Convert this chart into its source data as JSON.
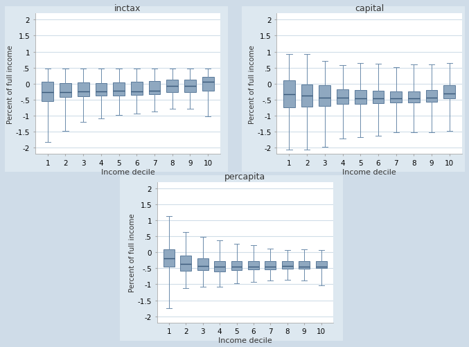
{
  "titles": [
    "inctax",
    "capital",
    "percapita"
  ],
  "xlabel": "Income decile",
  "ylabel": "Percent of full income",
  "ylim": [
    -2.2,
    2.2
  ],
  "yticks": [
    -2,
    -1.5,
    -1,
    -0.5,
    0,
    0.5,
    1,
    1.5,
    2
  ],
  "ytick_labels": [
    "-2",
    "-1.5",
    "-1",
    "-.5",
    "0",
    ".5",
    "1",
    "1.5",
    "2"
  ],
  "deciles": [
    1,
    2,
    3,
    4,
    5,
    6,
    7,
    8,
    9,
    10
  ],
  "box_facecolor": "#8fa8c0",
  "box_edgecolor": "#5a7a9a",
  "median_color": "#3a5a7a",
  "whisker_color": "#6a8aaa",
  "bg_color": "#cfdce8",
  "plot_bg": "#ffffff",
  "panel_bg": "#dde8f0",
  "grid_color": "#d0dde8",
  "inctax": {
    "q1": [
      -0.55,
      -0.42,
      -0.4,
      -0.38,
      -0.37,
      -0.35,
      -0.33,
      -0.27,
      -0.26,
      -0.22
    ],
    "median": [
      -0.27,
      -0.27,
      -0.24,
      -0.25,
      -0.23,
      -0.24,
      -0.22,
      -0.08,
      -0.07,
      0.07
    ],
    "q3": [
      0.07,
      0.02,
      0.04,
      0.02,
      0.04,
      0.06,
      0.09,
      0.12,
      0.12,
      0.22
    ],
    "whislo": [
      -1.83,
      -1.47,
      -1.2,
      -1.08,
      -0.98,
      -0.93,
      -0.88,
      -0.78,
      -0.78,
      -1.03
    ],
    "whishi": [
      0.48,
      0.48,
      0.48,
      0.48,
      0.48,
      0.48,
      0.48,
      0.48,
      0.48,
      0.48
    ]
  },
  "capital": {
    "q1": [
      -0.75,
      -0.72,
      -0.7,
      -0.63,
      -0.63,
      -0.62,
      -0.6,
      -0.6,
      -0.57,
      -0.45
    ],
    "median": [
      -0.32,
      -0.38,
      -0.43,
      -0.43,
      -0.45,
      -0.47,
      -0.46,
      -0.47,
      -0.44,
      -0.3
    ],
    "q3": [
      0.1,
      -0.02,
      -0.05,
      -0.17,
      -0.2,
      -0.22,
      -0.24,
      -0.24,
      -0.21,
      -0.05
    ],
    "whislo": [
      -2.07,
      -2.07,
      -1.97,
      -1.72,
      -1.67,
      -1.62,
      -1.52,
      -1.52,
      -1.52,
      -1.47
    ],
    "whishi": [
      0.92,
      0.92,
      0.7,
      0.57,
      0.65,
      0.62,
      0.52,
      0.6,
      0.6,
      0.65
    ]
  },
  "percapita": {
    "q1": [
      -0.45,
      -0.58,
      -0.55,
      -0.6,
      -0.55,
      -0.54,
      -0.53,
      -0.52,
      -0.52,
      -0.5
    ],
    "median": [
      -0.2,
      -0.37,
      -0.42,
      -0.46,
      -0.44,
      -0.44,
      -0.44,
      -0.43,
      -0.44,
      -0.44
    ],
    "q3": [
      0.1,
      -0.1,
      -0.18,
      -0.27,
      -0.27,
      -0.27,
      -0.27,
      -0.27,
      -0.27,
      -0.28
    ],
    "whislo": [
      -1.75,
      -1.13,
      -1.08,
      -1.08,
      -0.98,
      -0.93,
      -0.88,
      -0.86,
      -0.88,
      -1.03
    ],
    "whishi": [
      1.14,
      0.64,
      0.49,
      0.37,
      0.27,
      0.22,
      0.12,
      0.07,
      0.1,
      0.07
    ]
  }
}
